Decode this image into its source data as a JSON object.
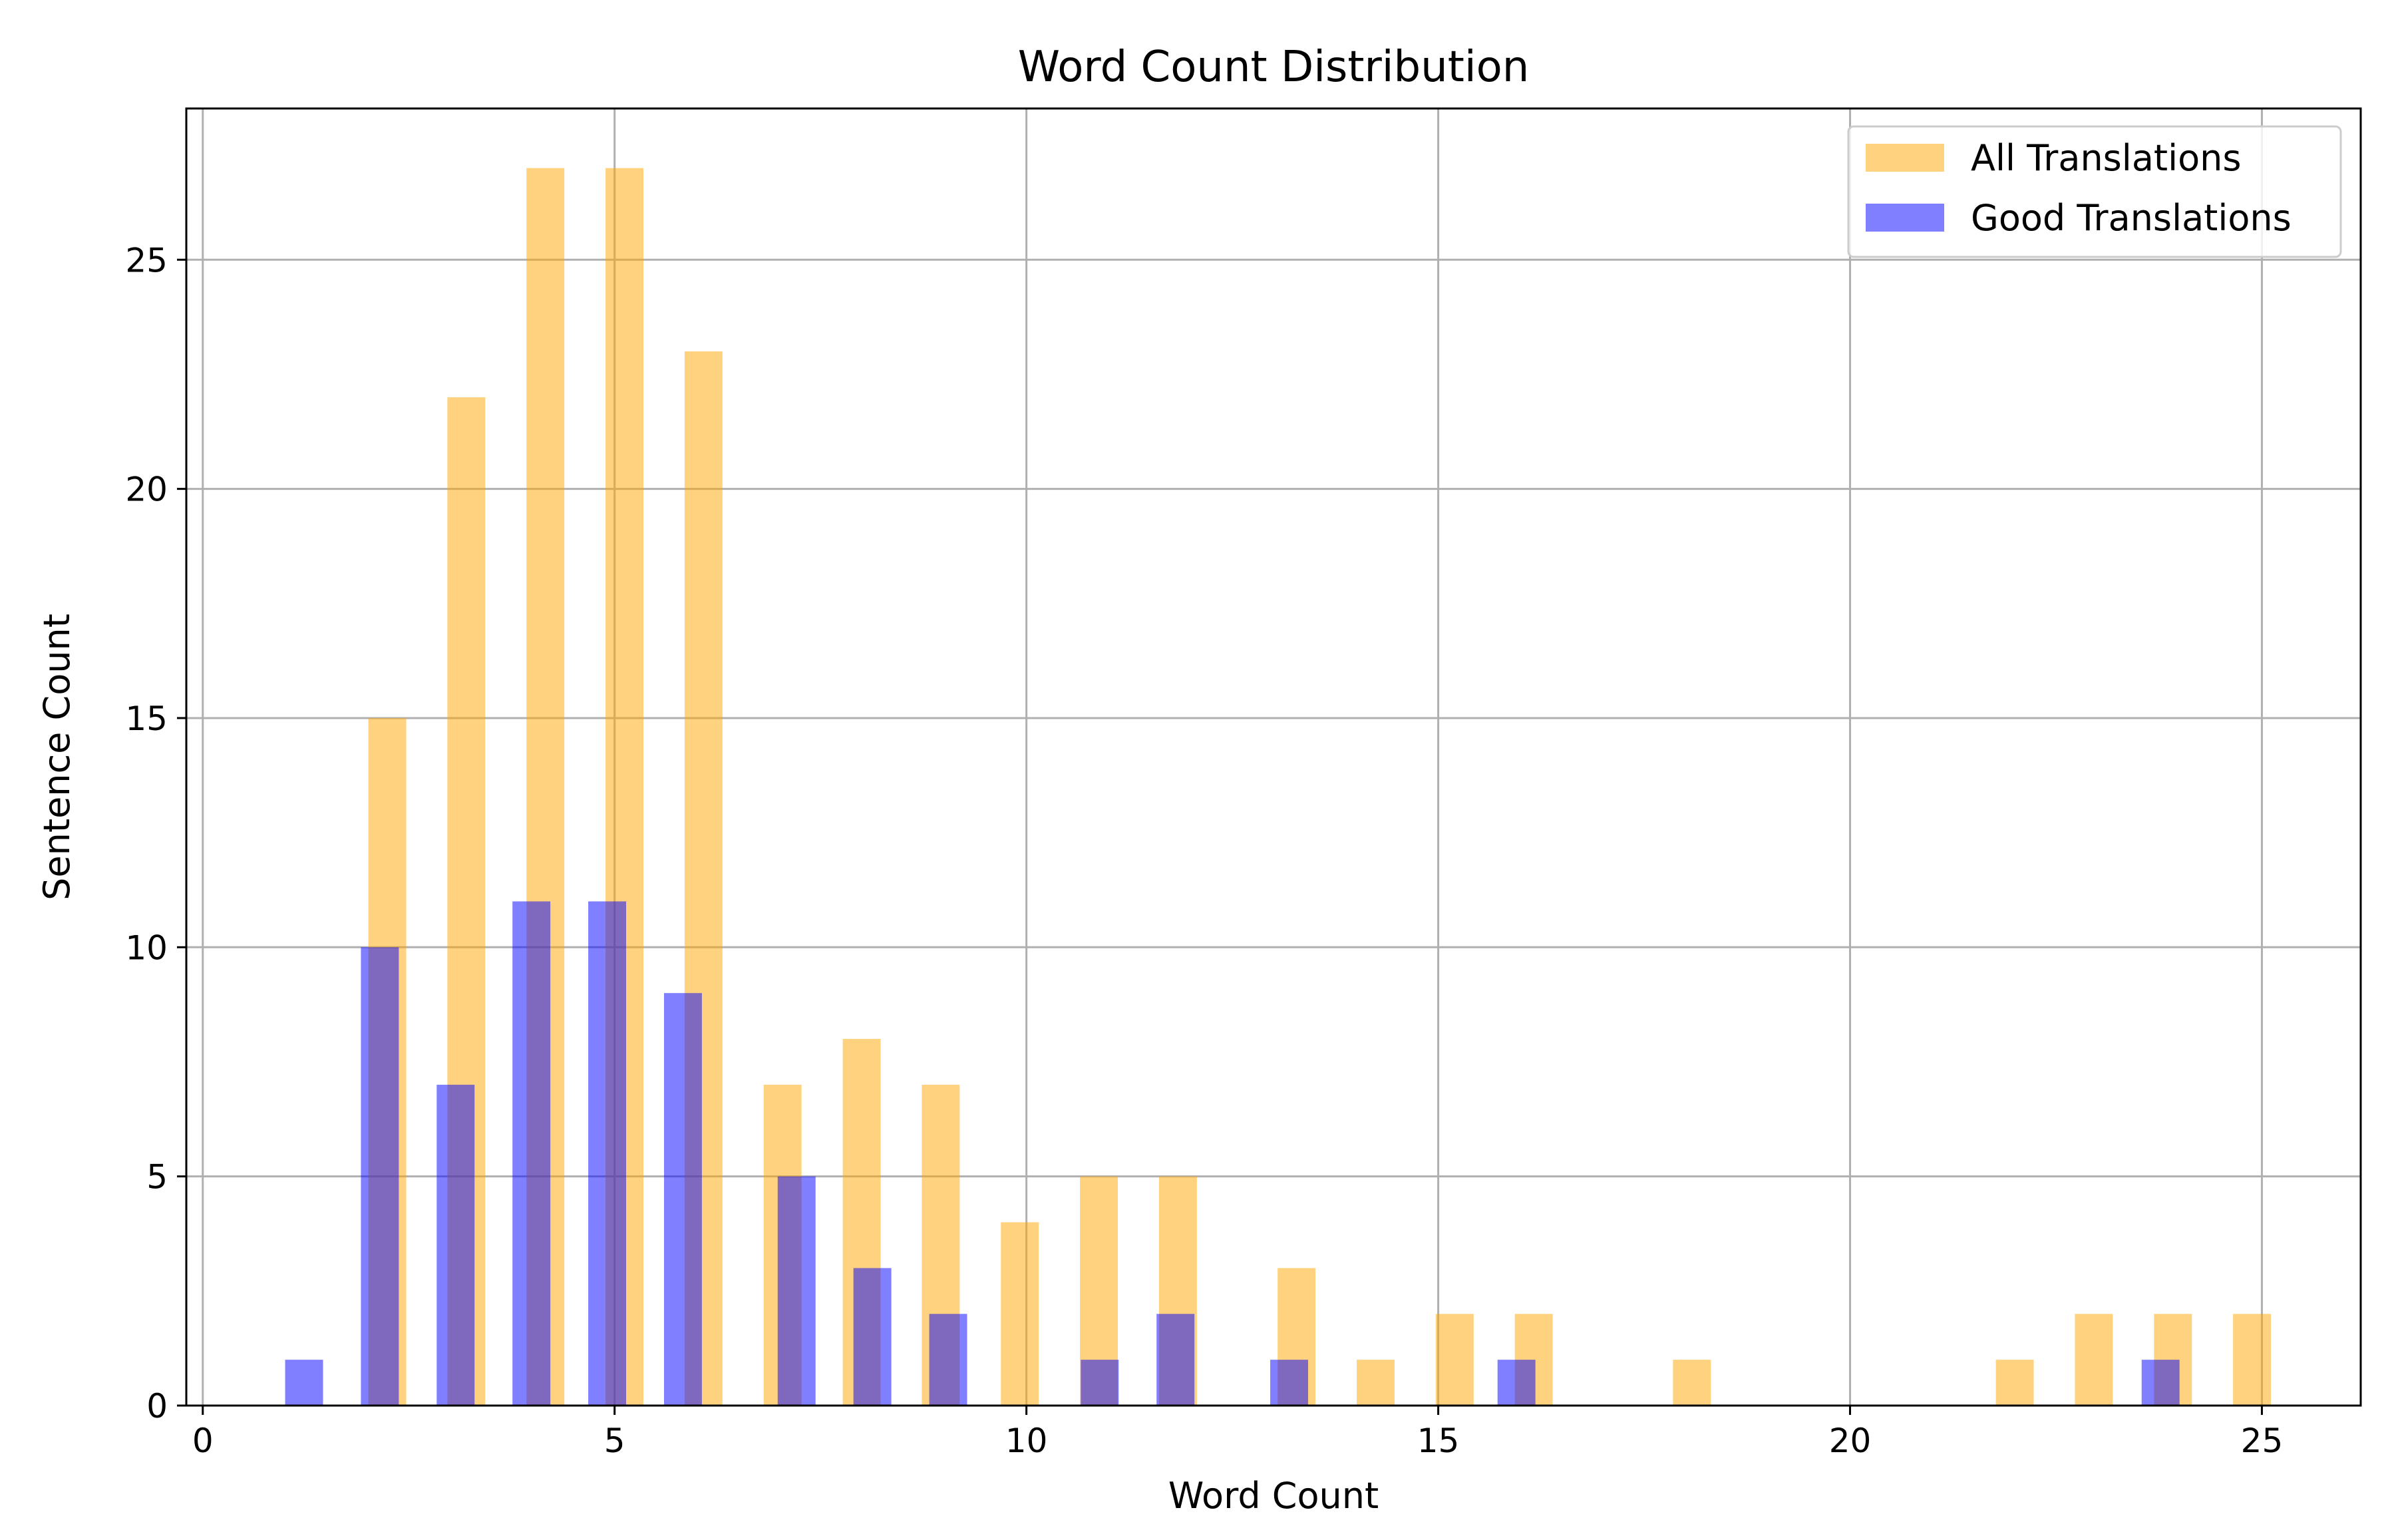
{
  "chart_data": {
    "type": "bar",
    "title": "Word Count Distribution",
    "xlabel": "Word Count",
    "ylabel": "Sentence Count",
    "xlim": [
      -0.2,
      26.2
    ],
    "ylim": [
      0,
      28.3
    ],
    "xticks": [
      0,
      5,
      10,
      15,
      20,
      25
    ],
    "yticks": [
      0,
      5,
      10,
      15,
      20,
      25
    ],
    "grid": true,
    "legend_position": "top-right",
    "series": [
      {
        "name": "All Translations",
        "color": "#ffa500",
        "opacity": 0.5,
        "bar_width_units": 0.46,
        "bins": [
          {
            "x": 2.24,
            "value": 15
          },
          {
            "x": 3.2,
            "value": 22
          },
          {
            "x": 4.16,
            "value": 27
          },
          {
            "x": 5.12,
            "value": 27
          },
          {
            "x": 6.08,
            "value": 23
          },
          {
            "x": 7.04,
            "value": 7
          },
          {
            "x": 8.0,
            "value": 8
          },
          {
            "x": 8.96,
            "value": 7
          },
          {
            "x": 9.92,
            "value": 4
          },
          {
            "x": 10.88,
            "value": 5
          },
          {
            "x": 11.84,
            "value": 5
          },
          {
            "x": 13.28,
            "value": 3
          },
          {
            "x": 14.24,
            "value": 1
          },
          {
            "x": 15.2,
            "value": 2
          },
          {
            "x": 16.16,
            "value": 2
          },
          {
            "x": 18.08,
            "value": 1
          },
          {
            "x": 22.0,
            "value": 1
          },
          {
            "x": 22.96,
            "value": 2
          },
          {
            "x": 23.92,
            "value": 2
          },
          {
            "x": 24.88,
            "value": 2
          }
        ]
      },
      {
        "name": "Good Translations",
        "color": "#0000ff",
        "opacity": 0.5,
        "bar_width_units": 0.46,
        "bins": [
          {
            "x": 1.23,
            "value": 1
          },
          {
            "x": 2.15,
            "value": 10
          },
          {
            "x": 3.07,
            "value": 7
          },
          {
            "x": 3.99,
            "value": 11
          },
          {
            "x": 4.91,
            "value": 11
          },
          {
            "x": 5.83,
            "value": 9
          },
          {
            "x": 7.21,
            "value": 5
          },
          {
            "x": 8.13,
            "value": 3
          },
          {
            "x": 9.05,
            "value": 2
          },
          {
            "x": 10.89,
            "value": 1
          },
          {
            "x": 11.81,
            "value": 2
          },
          {
            "x": 13.19,
            "value": 1
          },
          {
            "x": 15.95,
            "value": 1
          },
          {
            "x": 23.77,
            "value": 1
          }
        ]
      }
    ]
  }
}
